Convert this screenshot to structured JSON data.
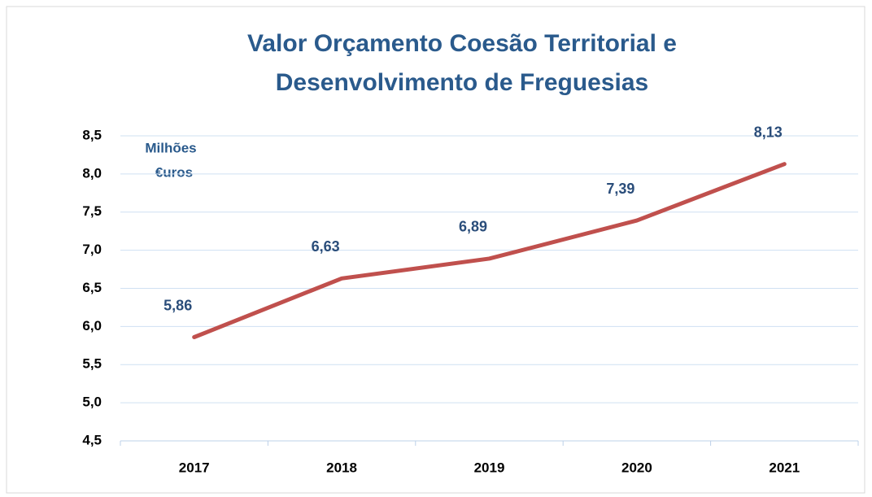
{
  "chart_data": {
    "type": "line",
    "title": [
      "Valor Orçamento Coesão Territorial e",
      "Desenvolvimento de Freguesias"
    ],
    "annotation": [
      "Milhões",
      "€uros"
    ],
    "categories": [
      "2017",
      "2018",
      "2019",
      "2020",
      "2021"
    ],
    "values": [
      5.86,
      6.63,
      6.89,
      7.39,
      8.13
    ],
    "value_labels": [
      "5,86",
      "6,63",
      "6,89",
      "7,39",
      "8,13"
    ],
    "color": "#c0504d",
    "ylim": [
      4.5,
      8.5
    ],
    "yticks": [
      {
        "value": 4.5,
        "label": "4,5"
      },
      {
        "value": 5,
        "label": "5,0"
      },
      {
        "value": 5.5,
        "label": "5,5"
      },
      {
        "value": 6,
        "label": "6,0"
      },
      {
        "value": 6.5,
        "label": "6,5"
      },
      {
        "value": 7,
        "label": "7,0"
      },
      {
        "value": 7.5,
        "label": "7,5"
      },
      {
        "value": 8,
        "label": "8,0"
      },
      {
        "value": 8.5,
        "label": "8,5"
      }
    ],
    "grid": true
  }
}
